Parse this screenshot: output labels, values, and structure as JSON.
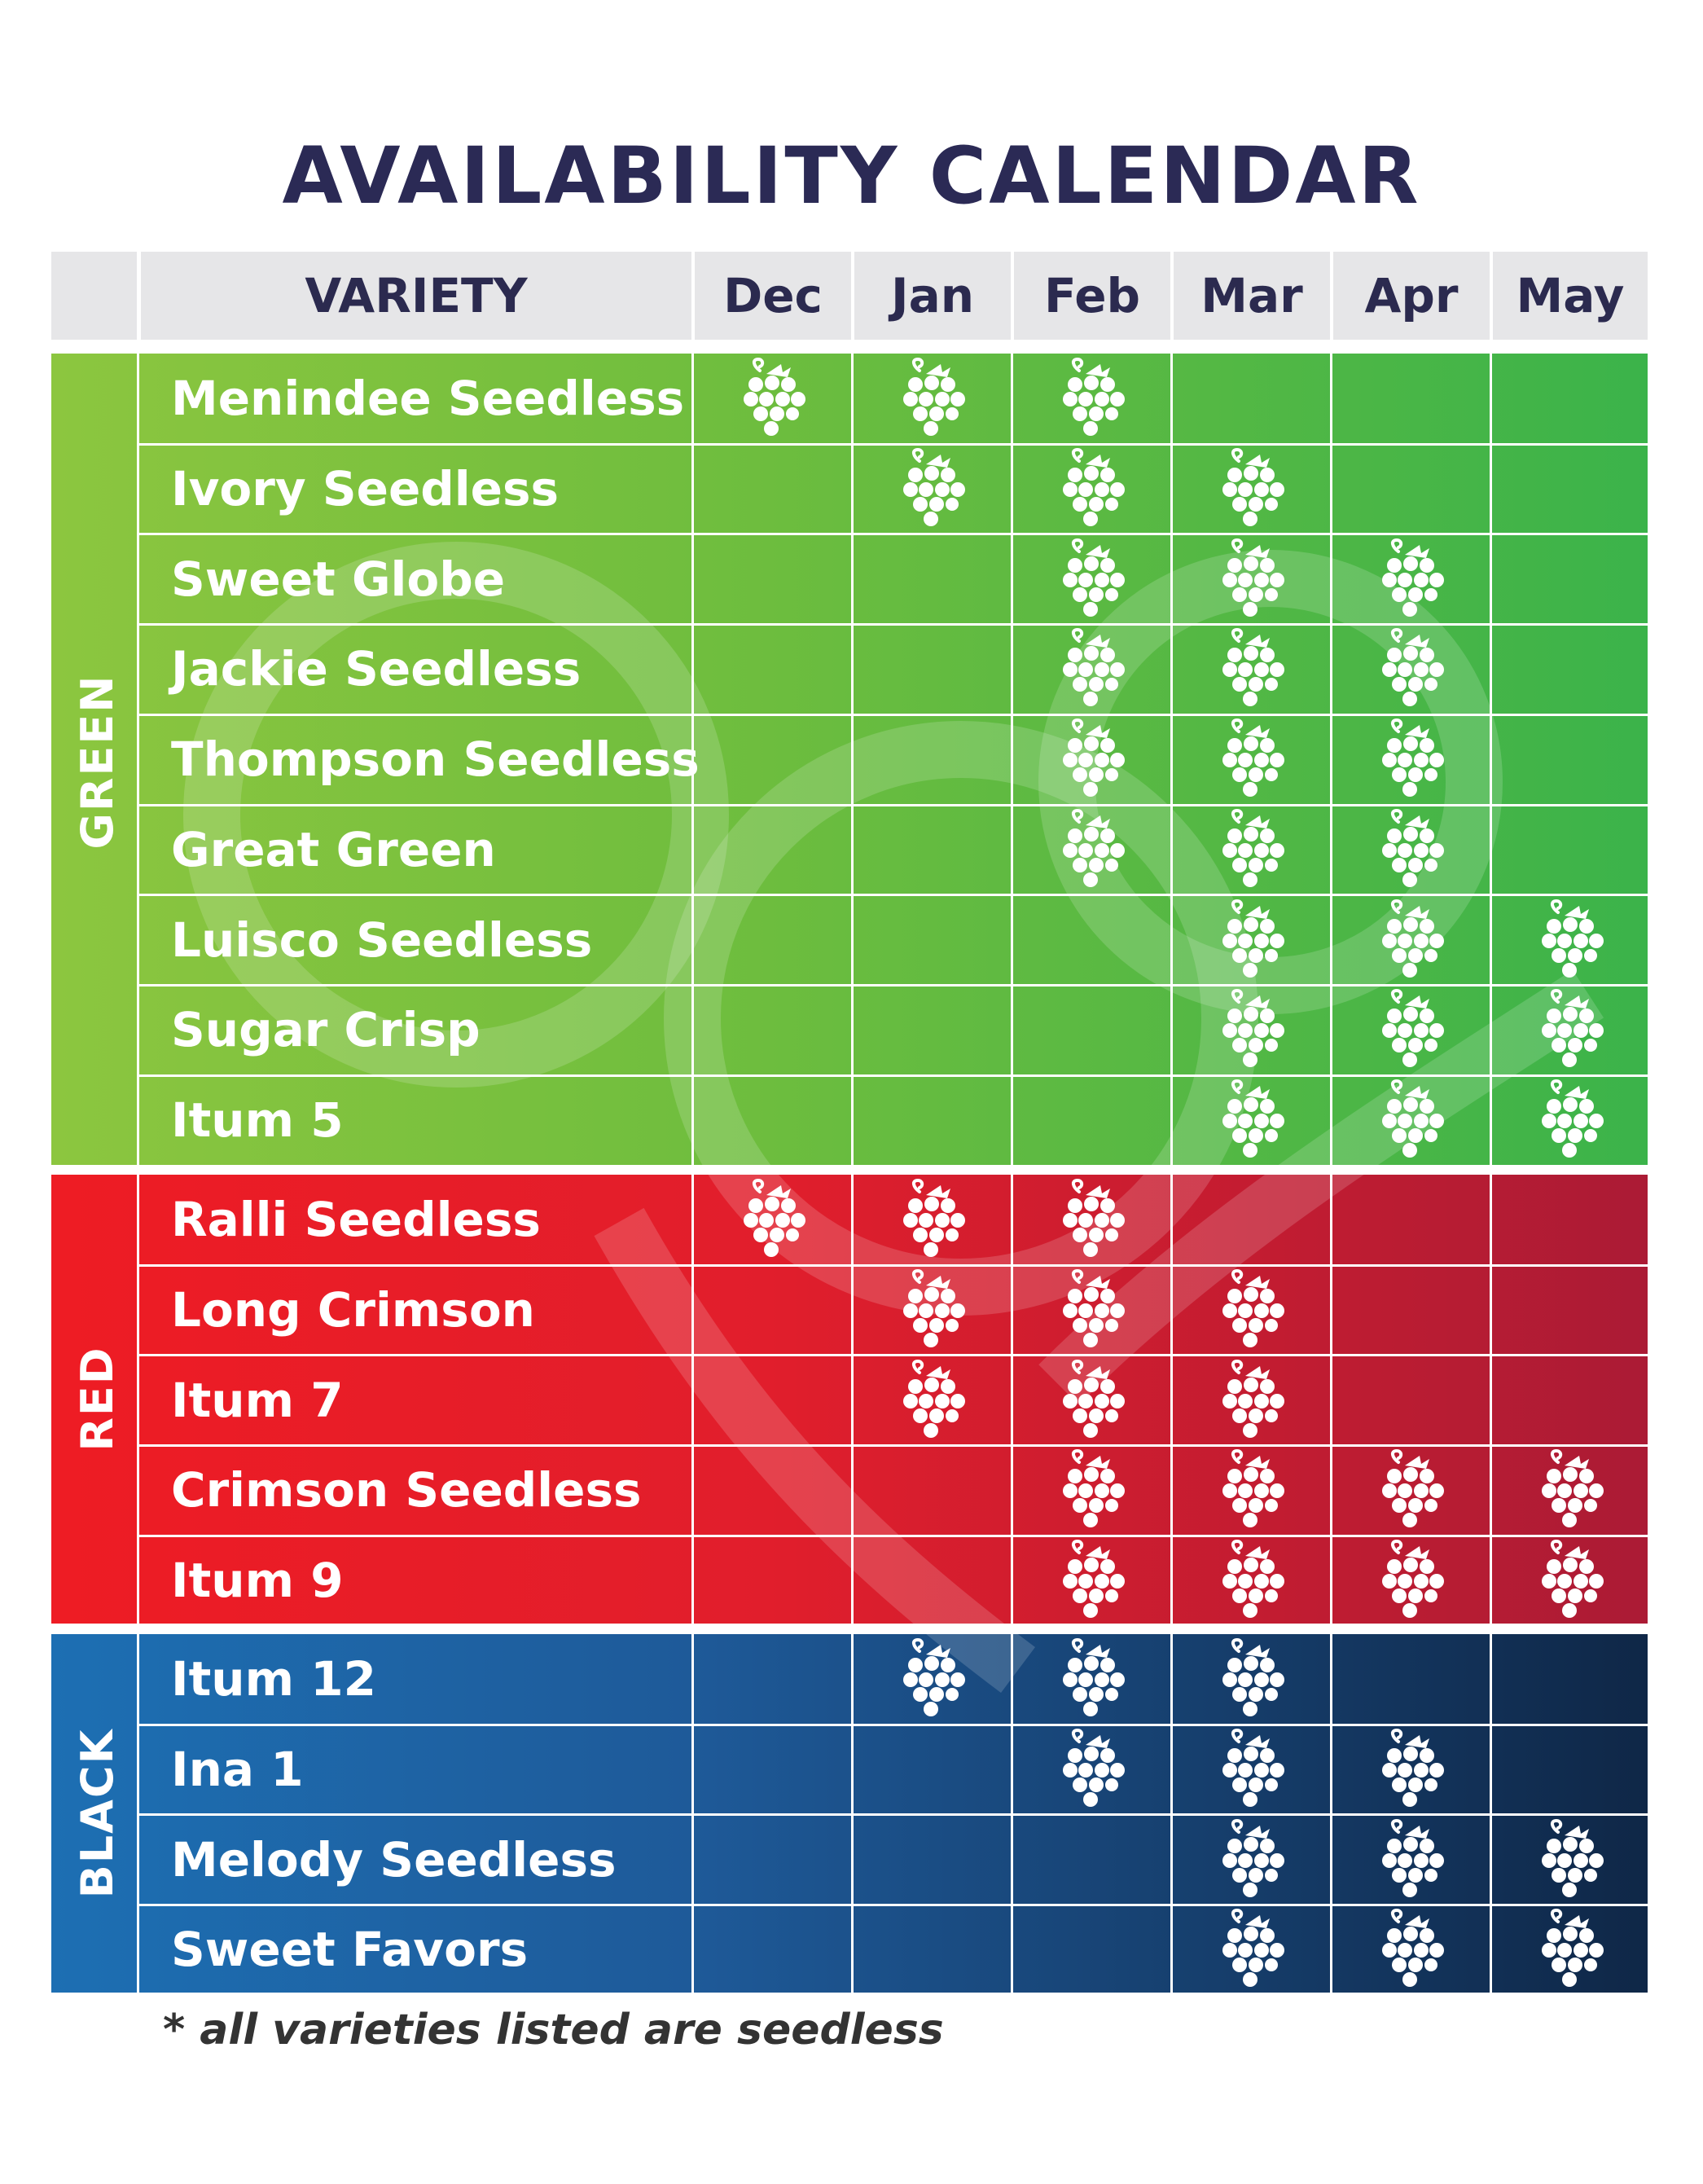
{
  "title": "AVAILABILITY  CALENDAR",
  "header": {
    "variety_label": "VARIETY",
    "months": [
      "Dec",
      "Jan",
      "Feb",
      "Mar",
      "Apr",
      "May"
    ]
  },
  "groups": [
    {
      "name": "GREEN",
      "color": "#6dbd3e",
      "varieties": [
        {
          "name": "Menindee Seedless",
          "available": [
            1,
            1,
            1,
            0,
            0,
            0
          ]
        },
        {
          "name": "Ivory Seedless",
          "available": [
            0,
            1,
            1,
            1,
            0,
            0
          ]
        },
        {
          "name": "Sweet Globe",
          "available": [
            0,
            0,
            1,
            1,
            1,
            0
          ]
        },
        {
          "name": "Jackie Seedless",
          "available": [
            0,
            0,
            1,
            1,
            1,
            0
          ]
        },
        {
          "name": "Thompson Seedless",
          "available": [
            0,
            0,
            1,
            1,
            1,
            0
          ]
        },
        {
          "name": "Great Green",
          "available": [
            0,
            0,
            1,
            1,
            1,
            0
          ]
        },
        {
          "name": "Luisco Seedless",
          "available": [
            0,
            0,
            0,
            1,
            1,
            1
          ]
        },
        {
          "name": "Sugar Crisp",
          "available": [
            0,
            0,
            0,
            1,
            1,
            1
          ]
        },
        {
          "name": "Itum 5",
          "available": [
            0,
            0,
            0,
            1,
            1,
            1
          ]
        }
      ]
    },
    {
      "name": "RED",
      "color": "#e11e2c",
      "varieties": [
        {
          "name": "Ralli Seedless",
          "available": [
            1,
            1,
            1,
            0,
            0,
            0
          ]
        },
        {
          "name": "Long Crimson",
          "available": [
            0,
            1,
            1,
            1,
            0,
            0
          ]
        },
        {
          "name": "Itum 7",
          "available": [
            0,
            1,
            1,
            1,
            0,
            0
          ]
        },
        {
          "name": "Crimson Seedless",
          "available": [
            0,
            0,
            1,
            1,
            1,
            1
          ]
        },
        {
          "name": "Itum 9",
          "available": [
            0,
            0,
            1,
            1,
            1,
            1
          ]
        }
      ]
    },
    {
      "name": "BLACK",
      "color": "#1e5a99",
      "varieties": [
        {
          "name": "Itum 12",
          "available": [
            0,
            1,
            1,
            1,
            0,
            0
          ]
        },
        {
          "name": "Ina 1",
          "available": [
            0,
            0,
            1,
            1,
            1,
            0
          ]
        },
        {
          "name": "Melody Seedless",
          "available": [
            0,
            0,
            0,
            1,
            1,
            1
          ]
        },
        {
          "name": "Sweet Favors",
          "available": [
            0,
            0,
            0,
            1,
            1,
            1
          ]
        }
      ]
    }
  ],
  "icon": "grape-cluster-icon",
  "footnote": "* all varieties listed are seedless"
}
